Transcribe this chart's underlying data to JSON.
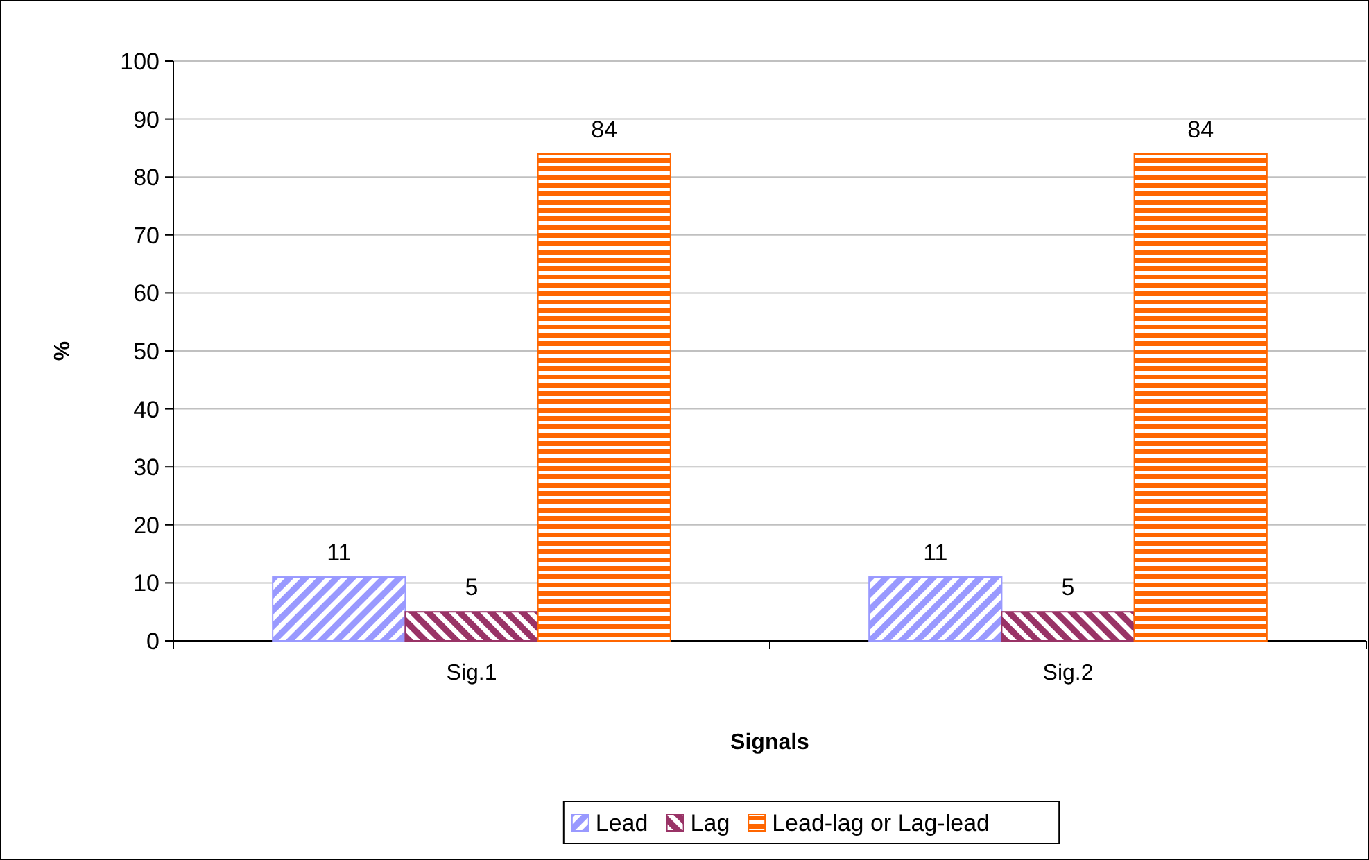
{
  "chart_data": {
    "type": "bar",
    "xlabel": "Signals",
    "ylabel": "%",
    "categories": [
      "Sig.1",
      "Sig.2"
    ],
    "series": [
      {
        "name": "Lead",
        "color": "#9999ff",
        "values": [
          11,
          11
        ]
      },
      {
        "name": "Lag",
        "color": "#993366",
        "values": [
          5,
          5
        ]
      },
      {
        "name": "Lead-lag or Lag-lead",
        "color": "#ff6600",
        "values": [
          84,
          84
        ]
      }
    ],
    "ylim": [
      0,
      100
    ],
    "yticks": [
      0,
      10,
      20,
      30,
      40,
      50,
      60,
      70,
      80,
      90,
      100
    ],
    "grid": "y",
    "legend": "bottom",
    "data_labels": true
  }
}
